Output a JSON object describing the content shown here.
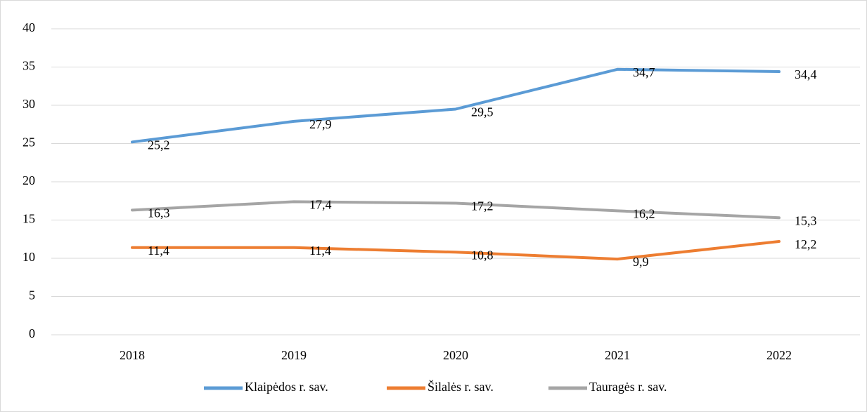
{
  "chart_data": {
    "type": "line",
    "categories": [
      "2018",
      "2019",
      "2020",
      "2021",
      "2022"
    ],
    "series": [
      {
        "name": "Klaipėdos r. sav.",
        "color": "#5b9bd5",
        "values": [
          25.2,
          27.9,
          29.5,
          34.7,
          34.4
        ],
        "value_labels": [
          "25,2",
          "27,9",
          "29,5",
          "34,7",
          "34,4"
        ]
      },
      {
        "name": "Šilalės r. sav.",
        "color": "#ed7d31",
        "values": [
          11.4,
          11.4,
          10.8,
          9.9,
          12.2
        ],
        "value_labels": [
          "11,4",
          "11,4",
          "10,8",
          "9,9",
          "12,2"
        ]
      },
      {
        "name": "Tauragės r. sav.",
        "color": "#a5a5a5",
        "values": [
          16.3,
          17.4,
          17.2,
          16.2,
          15.3
        ],
        "value_labels": [
          "16,3",
          "17,4",
          "17,2",
          "16,2",
          "15,3"
        ]
      }
    ],
    "ylim": [
      0,
      40
    ],
    "yticks": [
      0,
      5,
      10,
      15,
      20,
      25,
      30,
      35,
      40
    ],
    "grid": true,
    "legend": "bottom"
  }
}
